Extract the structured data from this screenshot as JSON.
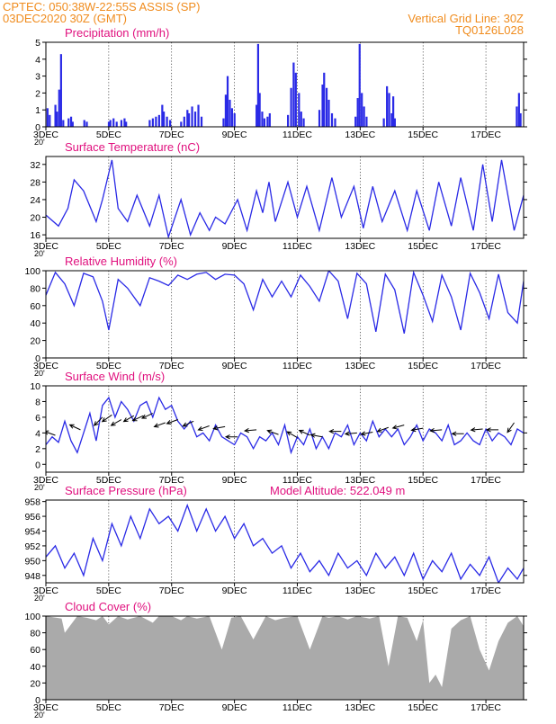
{
  "header": {
    "line1_left": "CPTEC:   050:38W-22:55S   ASSIS (SP)",
    "line2_left": "03DEC2020 30Z (GMT)",
    "line1_right": "Vertical Grid Line: 30Z",
    "line2_right": "TQ0126L028"
  },
  "x_axis": {
    "ticks": [
      "3DEC",
      "5DEC",
      "7DEC",
      "9DEC",
      "11DEC",
      "13DEC",
      "15DEC",
      "17DEC"
    ],
    "tick_days": [
      0,
      2,
      4,
      6,
      8,
      10,
      12,
      14
    ],
    "range_days": [
      0,
      15.2
    ],
    "year_fragment": "20'"
  },
  "extra": {
    "model_altitude": "Model Altitude:  522.049  m"
  },
  "chart_data": [
    {
      "type": "bar",
      "id": "precip",
      "title": "Precipitation (mm/h)",
      "ylim": [
        0,
        5
      ],
      "yticks": [
        0,
        1,
        2,
        3,
        4,
        5
      ],
      "events": [
        [
          0.05,
          1.1
        ],
        [
          0.12,
          0.7
        ],
        [
          0.3,
          1.3
        ],
        [
          0.35,
          0.9
        ],
        [
          0.42,
          2.2
        ],
        [
          0.48,
          4.3
        ],
        [
          0.55,
          0.4
        ],
        [
          0.72,
          0.5
        ],
        [
          0.8,
          0.6
        ],
        [
          0.85,
          0.3
        ],
        [
          1.22,
          0.4
        ],
        [
          1.3,
          0.3
        ],
        [
          2.0,
          0.3
        ],
        [
          2.05,
          0.4
        ],
        [
          2.15,
          0.5
        ],
        [
          2.25,
          0.3
        ],
        [
          2.4,
          0.4
        ],
        [
          2.5,
          0.5
        ],
        [
          2.55,
          0.3
        ],
        [
          3.3,
          0.4
        ],
        [
          3.4,
          0.5
        ],
        [
          3.5,
          0.6
        ],
        [
          3.6,
          0.7
        ],
        [
          3.7,
          1.3
        ],
        [
          3.75,
          0.9
        ],
        [
          3.85,
          0.6
        ],
        [
          3.95,
          0.4
        ],
        [
          4.3,
          0.3
        ],
        [
          4.4,
          0.6
        ],
        [
          4.5,
          1.0
        ],
        [
          4.55,
          0.8
        ],
        [
          4.65,
          1.2
        ],
        [
          4.75,
          0.9
        ],
        [
          4.85,
          1.3
        ],
        [
          4.95,
          0.6
        ],
        [
          5.65,
          0.5
        ],
        [
          5.72,
          1.9
        ],
        [
          5.78,
          3.0
        ],
        [
          5.85,
          1.6
        ],
        [
          5.92,
          1.1
        ],
        [
          6.0,
          0.8
        ],
        [
          6.7,
          1.3
        ],
        [
          6.75,
          4.9
        ],
        [
          6.8,
          2.0
        ],
        [
          6.88,
          0.9
        ],
        [
          6.95,
          0.5
        ],
        [
          7.05,
          0.6
        ],
        [
          7.12,
          0.8
        ],
        [
          7.7,
          0.7
        ],
        [
          7.8,
          2.3
        ],
        [
          7.88,
          3.8
        ],
        [
          7.95,
          3.2
        ],
        [
          8.05,
          2.0
        ],
        [
          8.12,
          0.9
        ],
        [
          8.2,
          0.5
        ],
        [
          8.7,
          1.0
        ],
        [
          8.8,
          2.5
        ],
        [
          8.85,
          3.2
        ],
        [
          8.93,
          2.3
        ],
        [
          9.0,
          1.6
        ],
        [
          9.1,
          0.8
        ],
        [
          9.2,
          0.5
        ],
        [
          9.85,
          0.6
        ],
        [
          9.92,
          1.7
        ],
        [
          9.98,
          4.9
        ],
        [
          10.05,
          2.0
        ],
        [
          10.12,
          1.2
        ],
        [
          10.2,
          0.6
        ],
        [
          10.75,
          0.5
        ],
        [
          10.85,
          2.4
        ],
        [
          10.92,
          2.0
        ],
        [
          11.0,
          0.8
        ],
        [
          11.05,
          1.8
        ],
        [
          11.1,
          0.5
        ],
        [
          14.98,
          1.2
        ],
        [
          15.05,
          2.0
        ],
        [
          15.1,
          0.8
        ]
      ]
    },
    {
      "type": "line",
      "id": "temp",
      "title": "Surface Temperature (nC)",
      "ylim": [
        15.2,
        33.8
      ],
      "yticks": [
        16,
        20,
        24,
        28,
        32
      ],
      "x": [
        0,
        0.4,
        0.7,
        0.9,
        1.2,
        1.6,
        1.8,
        2.1,
        2.3,
        2.6,
        2.9,
        3.3,
        3.6,
        3.9,
        4.3,
        4.6,
        4.9,
        5.2,
        5.4,
        5.7,
        6.1,
        6.4,
        6.7,
        6.9,
        7.1,
        7.3,
        7.7,
        8.0,
        8.3,
        8.7,
        9.1,
        9.4,
        9.8,
        10.1,
        10.4,
        10.7,
        11.1,
        11.5,
        11.8,
        12.2,
        12.5,
        12.9,
        13.2,
        13.6,
        13.9,
        14.2,
        14.5,
        14.9,
        15.2
      ],
      "values": [
        20.5,
        18,
        22,
        28.5,
        26,
        19,
        24,
        33,
        22,
        19,
        25,
        18,
        25,
        15.5,
        24,
        16,
        21,
        17,
        20,
        18.5,
        24,
        17,
        26,
        21,
        28,
        19,
        28,
        20,
        27,
        17,
        29,
        20,
        27,
        17.5,
        27,
        19,
        26,
        17,
        26,
        17,
        28,
        18,
        29,
        17,
        32,
        19,
        33,
        17,
        25
      ]
    },
    {
      "type": "line",
      "id": "rh",
      "title": "Relative Humidity (%)",
      "ylim": [
        0,
        100
      ],
      "yticks": [
        0,
        20,
        40,
        60,
        80,
        100
      ],
      "x": [
        0,
        0.3,
        0.6,
        0.9,
        1.2,
        1.5,
        1.8,
        2.0,
        2.3,
        2.6,
        3.0,
        3.3,
        3.6,
        3.9,
        4.2,
        4.5,
        4.8,
        5.1,
        5.4,
        5.7,
        6.0,
        6.3,
        6.6,
        6.9,
        7.2,
        7.5,
        7.8,
        8.1,
        8.4,
        8.7,
        9.0,
        9.3,
        9.6,
        9.9,
        10.2,
        10.5,
        10.8,
        11.1,
        11.4,
        11.7,
        12.0,
        12.3,
        12.6,
        12.9,
        13.2,
        13.5,
        13.8,
        14.1,
        14.4,
        14.7,
        15.0,
        15.2
      ],
      "values": [
        72,
        98,
        85,
        60,
        97,
        93,
        65,
        32,
        90,
        80,
        60,
        92,
        88,
        83,
        95,
        90,
        96,
        98,
        90,
        96,
        95,
        85,
        55,
        90,
        70,
        88,
        70,
        95,
        82,
        65,
        100,
        88,
        45,
        97,
        85,
        30,
        96,
        78,
        28,
        98,
        72,
        42,
        95,
        70,
        32,
        97,
        75,
        45,
        96,
        52,
        40,
        88
      ]
    },
    {
      "type": "line",
      "id": "wind",
      "title": "Surface Wind (m/s)",
      "ylim": [
        -1,
        10
      ],
      "yticks": [
        0,
        2,
        4,
        6,
        8,
        10
      ],
      "x": [
        0,
        0.2,
        0.4,
        0.6,
        0.8,
        1.0,
        1.2,
        1.4,
        1.6,
        1.8,
        2.0,
        2.2,
        2.4,
        2.6,
        2.8,
        3.0,
        3.2,
        3.4,
        3.6,
        3.8,
        4.0,
        4.2,
        4.4,
        4.6,
        4.8,
        5.0,
        5.2,
        5.4,
        5.6,
        5.8,
        6.0,
        6.2,
        6.4,
        6.6,
        6.8,
        7.0,
        7.2,
        7.4,
        7.6,
        7.8,
        8.0,
        8.2,
        8.4,
        8.6,
        8.8,
        9.0,
        9.2,
        9.4,
        9.6,
        9.8,
        10.0,
        10.2,
        10.4,
        10.6,
        10.8,
        11.0,
        11.2,
        11.4,
        11.6,
        11.8,
        12.0,
        12.2,
        12.4,
        12.6,
        12.8,
        13.0,
        13.2,
        13.4,
        13.6,
        13.8,
        14.0,
        14.2,
        14.4,
        14.6,
        14.8,
        15.0,
        15.2
      ],
      "values": [
        2.5,
        3.5,
        2.8,
        5.5,
        3.0,
        1.5,
        4.0,
        6.5,
        3.0,
        7.5,
        8.5,
        6.0,
        8.0,
        7.0,
        5.5,
        7.5,
        8.0,
        6.0,
        8.5,
        7.0,
        7.5,
        5.5,
        4.5,
        5.5,
        3.5,
        4.0,
        3.0,
        5.0,
        3.5,
        3.0,
        2.5,
        4.0,
        3.5,
        2.0,
        3.5,
        3.0,
        4.0,
        2.5,
        5.0,
        1.5,
        3.5,
        2.5,
        4.5,
        2.0,
        3.5,
        2.0,
        4.0,
        3.5,
        5.0,
        2.5,
        4.0,
        3.0,
        5.5,
        3.5,
        4.5,
        3.5,
        4.5,
        2.5,
        3.5,
        5.0,
        3.0,
        4.5,
        4.0,
        3.0,
        5.0,
        2.5,
        3.0,
        4.0,
        3.0,
        2.5,
        4.5,
        3.0,
        4.0,
        3.5,
        2.5,
        4.5,
        4.0
      ],
      "arrows": [
        [
          0.3,
          3.7,
          200
        ],
        [
          1.1,
          4.4,
          205
        ],
        [
          1.8,
          6.0,
          135
        ],
        [
          2.1,
          6.3,
          145
        ],
        [
          2.4,
          5.7,
          150
        ],
        [
          2.8,
          6.2,
          150
        ],
        [
          3.1,
          6.2,
          155
        ],
        [
          3.4,
          6.5,
          155
        ],
        [
          3.8,
          5.3,
          160
        ],
        [
          4.2,
          5.7,
          160
        ],
        [
          4.7,
          5.5,
          155
        ],
        [
          5.2,
          4.9,
          160
        ],
        [
          5.7,
          4.8,
          170
        ],
        [
          6.1,
          3.5,
          180
        ],
        [
          6.7,
          4.4,
          175
        ],
        [
          7.4,
          3.8,
          200
        ],
        [
          8.0,
          3.4,
          210
        ],
        [
          8.4,
          3.7,
          205
        ],
        [
          8.8,
          3.5,
          190
        ],
        [
          9.4,
          4.2,
          180
        ],
        [
          9.9,
          4.0,
          175
        ],
        [
          10.4,
          4.1,
          170
        ],
        [
          10.9,
          4.7,
          160
        ],
        [
          11.4,
          5.0,
          165
        ],
        [
          12.0,
          4.6,
          170
        ],
        [
          12.6,
          4.4,
          175
        ],
        [
          13.3,
          3.9,
          180
        ],
        [
          13.9,
          4.5,
          175
        ],
        [
          14.4,
          4.4,
          180
        ],
        [
          14.9,
          5.3,
          125
        ]
      ]
    },
    {
      "type": "line",
      "id": "press",
      "title": "Surface Pressure (hPa)",
      "ylim": [
        947,
        958.2
      ],
      "yticks": [
        948,
        950,
        952,
        954,
        956,
        958
      ],
      "x": [
        0,
        0.3,
        0.6,
        0.9,
        1.2,
        1.5,
        1.8,
        2.1,
        2.4,
        2.7,
        3.0,
        3.3,
        3.6,
        3.9,
        4.2,
        4.5,
        4.8,
        5.1,
        5.4,
        5.7,
        6.0,
        6.3,
        6.6,
        6.9,
        7.2,
        7.5,
        7.8,
        8.1,
        8.4,
        8.7,
        9.0,
        9.3,
        9.6,
        9.9,
        10.2,
        10.5,
        10.8,
        11.1,
        11.4,
        11.7,
        12.0,
        12.3,
        12.6,
        12.9,
        13.2,
        13.5,
        13.8,
        14.1,
        14.4,
        14.7,
        15.0,
        15.2
      ],
      "values": [
        950.5,
        952,
        949,
        951,
        948,
        953,
        950,
        955,
        952,
        956,
        953,
        957,
        955,
        956,
        954,
        957.5,
        954,
        957,
        954,
        956,
        953,
        955,
        952,
        953,
        951,
        952,
        949,
        951,
        948.5,
        950,
        948,
        951,
        949,
        950,
        948,
        951,
        949,
        950.5,
        948,
        951,
        947.5,
        950,
        948.5,
        951,
        947.5,
        949.5,
        948,
        950.5,
        947,
        949,
        947.5,
        949
      ]
    },
    {
      "type": "area",
      "id": "cloud",
      "title": "Cloud Cover (%)",
      "ylim": [
        0,
        100
      ],
      "yticks": [
        0,
        20,
        40,
        60,
        80,
        100
      ],
      "x": [
        0,
        0.5,
        0.6,
        1.0,
        1.3,
        1.6,
        1.8,
        2.0,
        2.3,
        2.6,
        3.0,
        3.4,
        3.6,
        4.0,
        4.3,
        4.5,
        4.8,
        5.2,
        5.6,
        5.9,
        6.2,
        6.6,
        7.0,
        7.3,
        7.6,
        8.0,
        8.4,
        8.8,
        9.0,
        9.3,
        9.6,
        9.9,
        10.3,
        10.6,
        10.9,
        11.2,
        11.5,
        11.8,
        12.0,
        12.2,
        12.4,
        12.6,
        12.9,
        13.2,
        13.5,
        13.8,
        14.1,
        14.4,
        14.7,
        15.0,
        15.2
      ],
      "values": [
        100,
        97,
        80,
        100,
        98,
        95,
        100,
        90,
        100,
        96,
        100,
        92,
        100,
        100,
        95,
        100,
        97,
        100,
        60,
        98,
        100,
        72,
        100,
        95,
        98,
        100,
        60,
        100,
        98,
        100,
        96,
        100,
        97,
        100,
        40,
        100,
        98,
        70,
        95,
        20,
        30,
        15,
        85,
        95,
        100,
        60,
        35,
        70,
        92,
        100,
        88
      ]
    }
  ]
}
